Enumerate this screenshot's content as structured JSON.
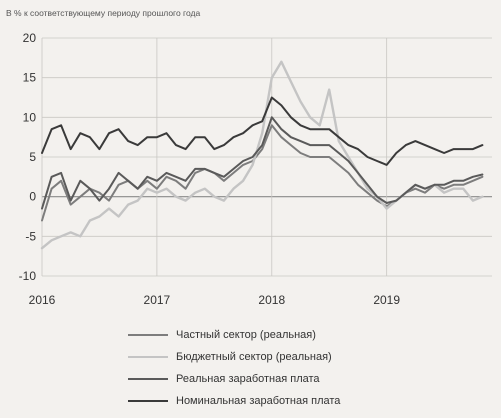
{
  "chart_data": {
    "type": "line",
    "title": "",
    "subtitle": "В % к соответствующему периоду прошлого года",
    "xlabel": "",
    "ylabel": "",
    "ylim": [
      -10,
      20
    ],
    "xlim": [
      "2016-01",
      "2019-12"
    ],
    "yticks": [
      -10,
      -5,
      0,
      5,
      10,
      15,
      20
    ],
    "yticklabels": [
      "-10",
      "-5",
      "0",
      "5",
      "10",
      "15",
      "20"
    ],
    "xticks": [
      "2016-01",
      "2017-01",
      "2018-01",
      "2019-01"
    ],
    "xticklabels": [
      "2016",
      "2017",
      "2018",
      "2019"
    ],
    "grid": true,
    "legend_position": "bottom",
    "x": [
      "2016-01",
      "2016-02",
      "2016-03",
      "2016-04",
      "2016-05",
      "2016-06",
      "2016-07",
      "2016-08",
      "2016-09",
      "2016-10",
      "2016-11",
      "2016-12",
      "2017-01",
      "2017-02",
      "2017-03",
      "2017-04",
      "2017-05",
      "2017-06",
      "2017-07",
      "2017-08",
      "2017-09",
      "2017-10",
      "2017-11",
      "2017-12",
      "2018-01",
      "2018-02",
      "2018-03",
      "2018-04",
      "2018-05",
      "2018-06",
      "2018-07",
      "2018-08",
      "2018-09",
      "2018-10",
      "2018-11",
      "2018-12",
      "2019-01",
      "2019-02",
      "2019-03",
      "2019-04",
      "2019-05",
      "2019-06",
      "2019-07",
      "2019-08",
      "2019-09",
      "2019-10",
      "2019-11"
    ],
    "series": [
      {
        "name": "Частный сектор (реальная)",
        "color": "#7d7d7d",
        "values": [
          -3,
          1,
          2,
          -1,
          0,
          1,
          0.5,
          -0.5,
          1.5,
          2,
          1,
          2,
          1,
          2.5,
          2,
          1,
          3,
          3.5,
          3,
          2,
          3,
          4,
          4.5,
          6,
          9,
          7.5,
          6.5,
          5.5,
          5,
          5,
          5,
          4,
          3,
          1.5,
          0.5,
          -0.5,
          -1.2,
          -0.5,
          0.5,
          1,
          0.5,
          1.5,
          1,
          1.5,
          1.5,
          2,
          2.5
        ]
      },
      {
        "name": "Бюджетный сектор (реальная)",
        "color": "#c4c4c4",
        "values": [
          -6.5,
          -5.5,
          -5,
          -4.5,
          -5,
          -3,
          -2.5,
          -1.5,
          -2.5,
          -1,
          -0.5,
          1,
          0.5,
          1,
          0,
          -0.5,
          0.5,
          1,
          0,
          -0.5,
          1,
          2,
          4,
          8,
          15,
          17,
          14.5,
          12,
          10,
          9,
          13.5,
          7,
          5,
          3,
          1,
          0,
          -1.5,
          -0.5,
          0.5,
          1.5,
          1,
          1.5,
          0.5,
          1,
          1,
          -0.5,
          0
        ]
      },
      {
        "name": "Реальная заработная плата",
        "color": "#5a5a5a",
        "values": [
          -1.5,
          2.5,
          3,
          -0.5,
          2,
          1,
          -0.5,
          1,
          3,
          2,
          1,
          2.5,
          2,
          3,
          2.5,
          2,
          3.5,
          3.5,
          3,
          2.5,
          3.5,
          4.5,
          5,
          6.5,
          10,
          8.5,
          7.5,
          7,
          6.5,
          6.5,
          6.5,
          5.5,
          4.5,
          3,
          1.5,
          0,
          -0.8,
          -0.5,
          0.5,
          1.5,
          1,
          1.5,
          1.5,
          2,
          2,
          2.5,
          2.8
        ]
      },
      {
        "name": "Номинальная заработная плата",
        "color": "#3a3a3a",
        "values": [
          5.5,
          8.5,
          9,
          6,
          8,
          7.5,
          6,
          8,
          8.5,
          7,
          6.5,
          7.5,
          7.5,
          8,
          6.5,
          6,
          7.5,
          7.5,
          6,
          6.5,
          7.5,
          8,
          9,
          9.5,
          12.5,
          11.5,
          10,
          9,
          8.5,
          8.5,
          8.5,
          7.5,
          6.5,
          6,
          5,
          4.5,
          4,
          5.5,
          6.5,
          7,
          6.5,
          6,
          5.5,
          6,
          6,
          6,
          6.5
        ]
      }
    ]
  }
}
